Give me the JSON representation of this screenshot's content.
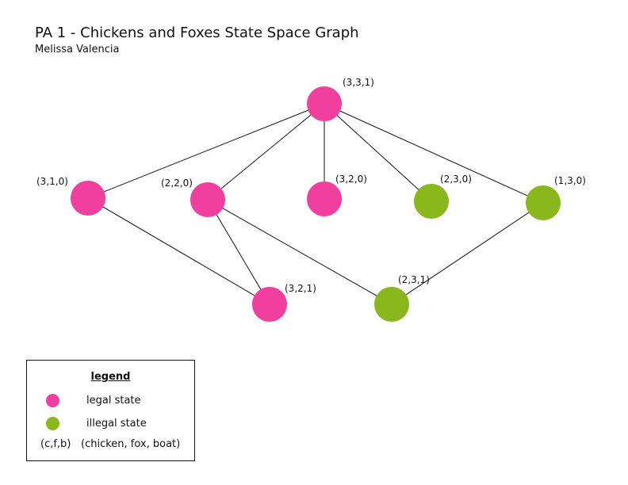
{
  "title": "PA 1 - Chickens and Foxes State Space Graph",
  "author": "Melissa Valencia",
  "colors": {
    "legal": "#f03f9e",
    "illegal": "#8ab81c",
    "edge": "#111111"
  },
  "nodes": [
    {
      "id": "n331",
      "label": "(3,3,1)",
      "state": "legal"
    },
    {
      "id": "n310",
      "label": "(3,1,0)",
      "state": "legal"
    },
    {
      "id": "n220",
      "label": "(2,2,0)",
      "state": "legal"
    },
    {
      "id": "n320",
      "label": "(3,2,0)",
      "state": "legal"
    },
    {
      "id": "n230",
      "label": "(2,3,0)",
      "state": "illegal"
    },
    {
      "id": "n130",
      "label": "(1,3,0)",
      "state": "illegal"
    },
    {
      "id": "n321",
      "label": "(3,2,1)",
      "state": "legal"
    },
    {
      "id": "n231",
      "label": "(2,3,1)",
      "state": "illegal"
    }
  ],
  "edges": [
    {
      "from": "(3,3,1)",
      "to": "(3,1,0)"
    },
    {
      "from": "(3,3,1)",
      "to": "(2,2,0)"
    },
    {
      "from": "(3,3,1)",
      "to": "(3,2,0)"
    },
    {
      "from": "(3,3,1)",
      "to": "(2,3,0)"
    },
    {
      "from": "(3,3,1)",
      "to": "(1,3,0)"
    },
    {
      "from": "(3,1,0)",
      "to": "(3,2,1)"
    },
    {
      "from": "(2,2,0)",
      "to": "(3,2,1)"
    },
    {
      "from": "(2,2,0)",
      "to": "(2,3,1)"
    },
    {
      "from": "(1,3,0)",
      "to": "(2,3,1)"
    }
  ],
  "legend": {
    "title": "legend",
    "legal_label": "legal state",
    "illegal_label": "illegal state",
    "key_symbol": "(c,f,b)",
    "key_meaning": "(chicken, fox, boat)"
  }
}
